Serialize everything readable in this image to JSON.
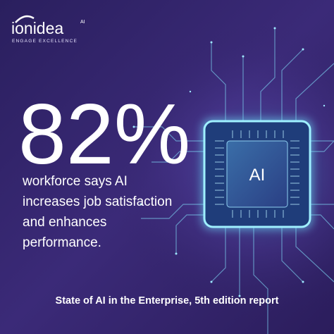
{
  "logo": {
    "name": "ionidea",
    "superscript": "AI",
    "tagline": "ENGAGE EXCELLENCE"
  },
  "headline": {
    "stat": "82%",
    "lines": [
      "workforce says AI",
      "increases job satisfaction",
      "and enhances",
      "performance."
    ]
  },
  "chip": {
    "label": "AI"
  },
  "footer": {
    "text": "State of AI in the Enterprise, 5th edition report"
  }
}
